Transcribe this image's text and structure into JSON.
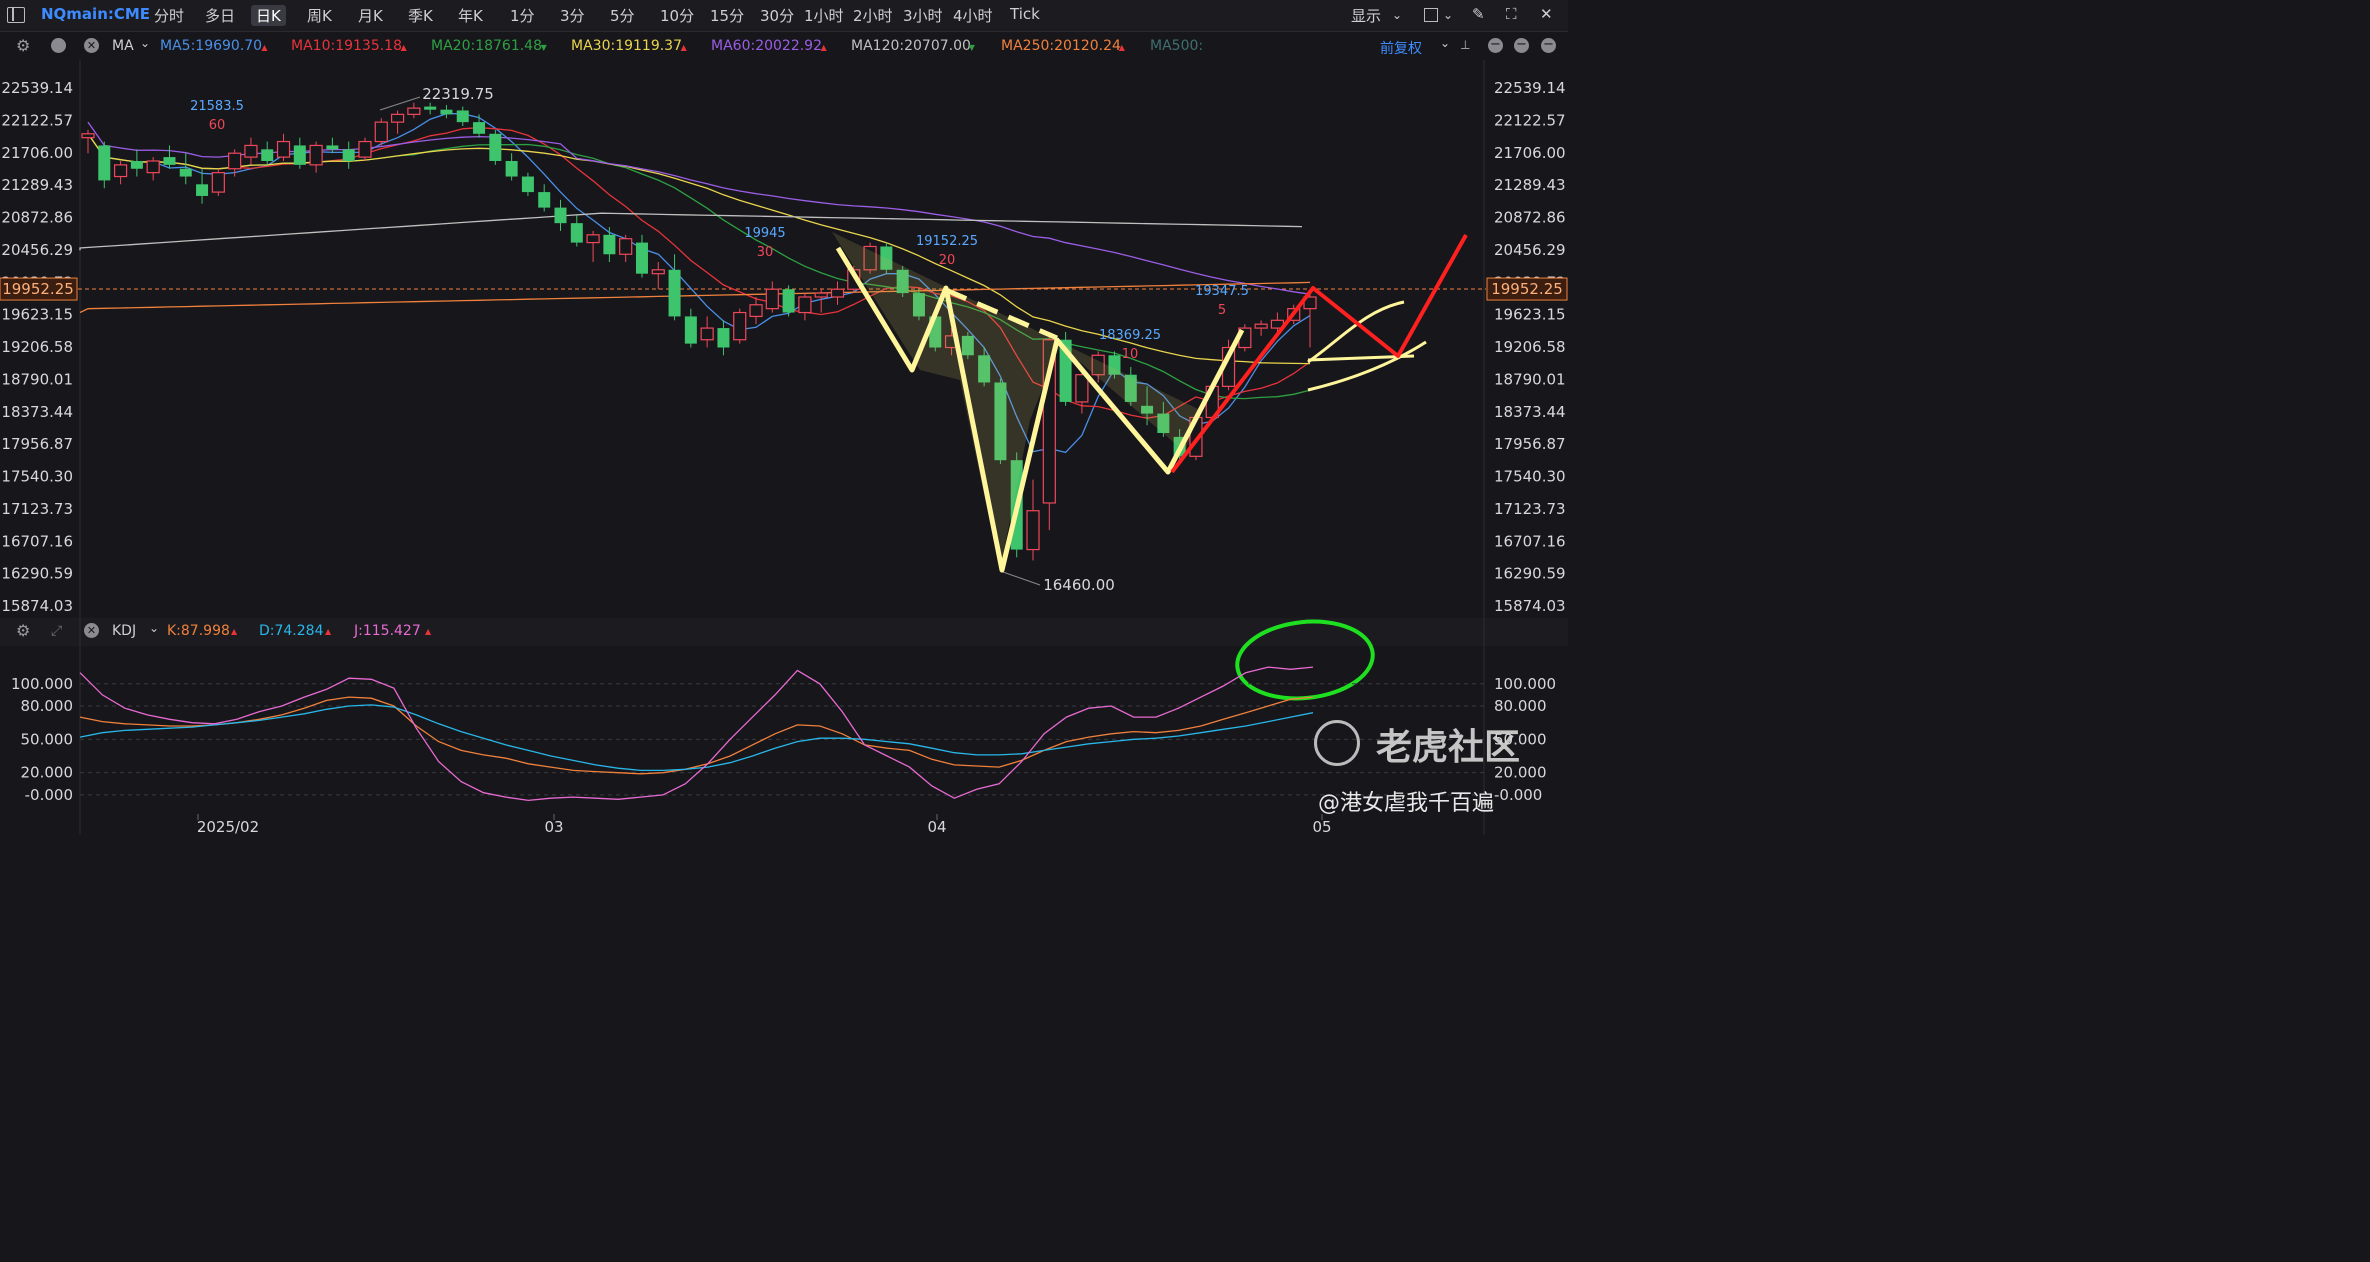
{
  "symbol": "NQmain:CME",
  "periods": [
    "分时",
    "多日",
    "日K",
    "周K",
    "月K",
    "季K",
    "年K",
    "1分",
    "3分",
    "5分",
    "10分",
    "15分",
    "30分",
    "1小时",
    "2小时",
    "3小时",
    "4小时",
    "Tick"
  ],
  "active_period": "日K",
  "display_label": "显示",
  "ma_bar": {
    "type_label": "MA",
    "items": [
      {
        "label": "MA5:19690.70",
        "color": "#4a8fe8"
      },
      {
        "label": "MA10:19135.18",
        "color": "#e8333b"
      },
      {
        "label": "MA20:18761.48",
        "color": "#2ea043"
      },
      {
        "label": "MA30:19119.37",
        "color": "#e9d44d"
      },
      {
        "label": "MA60:20022.92",
        "color": "#9b5de5"
      },
      {
        "label": "MA120:20707.00",
        "color": "#c0c0c0"
      },
      {
        "label": "MA250:20120.24",
        "color": "#f0803c"
      },
      {
        "label": "MA500:",
        "color": "#3f6f6f"
      }
    ],
    "adjust_label": "前复权"
  },
  "kdj_bar": {
    "type_label": "KDJ",
    "k": "K:87.998",
    "d": "D:74.284",
    "j": "J:115.427"
  },
  "current_price": "19952.25",
  "watermark": {
    "logo_text": "老虎社区",
    "author": "@港女虐我千百遍"
  },
  "chart_data": [
    {
      "type": "candlestick",
      "y_ticks": [
        "22539.14",
        "22122.57",
        "21706.00",
        "21289.43",
        "20872.86",
        "20456.29",
        "20039.72",
        "19623.15",
        "19206.58",
        "18790.01",
        "18373.44",
        "17956.87",
        "17540.30",
        "17123.73",
        "16707.16",
        "16290.59",
        "15874.03"
      ],
      "ylim": [
        15874.03,
        22539.14
      ],
      "x_ticks": [
        "2025/02",
        "03",
        "04",
        "05"
      ],
      "annotations": [
        {
          "text": "21583.5",
          "sub": "60"
        },
        {
          "text": "22319.75"
        },
        {
          "text": "19945",
          "sub": "30"
        },
        {
          "text": "19152.25",
          "sub": "20"
        },
        {
          "text": "18369.25",
          "sub": "10"
        },
        {
          "text": "19347.5",
          "sub": "5"
        },
        {
          "text": "16460.00"
        }
      ],
      "candles": [
        [
          21900,
          22000,
          21700,
          21950
        ],
        [
          21800,
          21850,
          21250,
          21350
        ],
        [
          21400,
          21600,
          21300,
          21550
        ],
        [
          21600,
          21750,
          21400,
          21500
        ],
        [
          21450,
          21650,
          21350,
          21600
        ],
        [
          21650,
          21800,
          21500,
          21550
        ],
        [
          21500,
          21700,
          21300,
          21400
        ],
        [
          21300,
          21500,
          21050,
          21150
        ],
        [
          21200,
          21500,
          21150,
          21450
        ],
        [
          21500,
          21750,
          21400,
          21700
        ],
        [
          21650,
          21900,
          21550,
          21800
        ],
        [
          21750,
          21850,
          21550,
          21600
        ],
        [
          21650,
          21950,
          21600,
          21850
        ],
        [
          21800,
          21900,
          21500,
          21550
        ],
        [
          21550,
          21850,
          21450,
          21800
        ],
        [
          21800,
          21900,
          21700,
          21750
        ],
        [
          21750,
          21850,
          21500,
          21600
        ],
        [
          21650,
          21900,
          21600,
          21850
        ],
        [
          21850,
          22150,
          21800,
          22100
        ],
        [
          22100,
          22250,
          21950,
          22200
        ],
        [
          22200,
          22350,
          22150,
          22280
        ],
        [
          22300,
          22350,
          22200,
          22260
        ],
        [
          22260,
          22320,
          22150,
          22200
        ],
        [
          22250,
          22300,
          22050,
          22100
        ],
        [
          22100,
          22200,
          21900,
          21950
        ],
        [
          21950,
          22000,
          21550,
          21600
        ],
        [
          21600,
          21700,
          21350,
          21400
        ],
        [
          21400,
          21450,
          21150,
          21200
        ],
        [
          21200,
          21300,
          20950,
          21000
        ],
        [
          21000,
          21100,
          20700,
          20800
        ],
        [
          20800,
          20900,
          20500,
          20550
        ],
        [
          20550,
          20700,
          20300,
          20650
        ],
        [
          20650,
          20750,
          20300,
          20400
        ],
        [
          20400,
          20650,
          20300,
          20600
        ],
        [
          20550,
          20650,
          20100,
          20150
        ],
        [
          20150,
          20300,
          19950,
          20200
        ],
        [
          20200,
          20400,
          19550,
          19600
        ],
        [
          19600,
          19700,
          19200,
          19250
        ],
        [
          19300,
          19600,
          19200,
          19450
        ],
        [
          19450,
          19550,
          19100,
          19200
        ],
        [
          19300,
          19700,
          19250,
          19650
        ],
        [
          19600,
          19850,
          19500,
          19750
        ],
        [
          19700,
          20050,
          19650,
          19950
        ],
        [
          19950,
          20000,
          19600,
          19650
        ],
        [
          19650,
          19900,
          19550,
          19850
        ],
        [
          19850,
          19950,
          19650,
          19900
        ],
        [
          19850,
          20050,
          19750,
          19950
        ],
        [
          19950,
          20250,
          19900,
          20200
        ],
        [
          20200,
          20550,
          20150,
          20500
        ],
        [
          20500,
          20550,
          20150,
          20200
        ],
        [
          20200,
          20250,
          19850,
          19900
        ],
        [
          19900,
          19950,
          19550,
          19600
        ],
        [
          19600,
          19650,
          19150,
          19200
        ],
        [
          19200,
          19450,
          19100,
          19350
        ],
        [
          19350,
          19400,
          19050,
          19100
        ],
        [
          19100,
          19200,
          18700,
          18750
        ],
        [
          18750,
          18800,
          17700,
          17750
        ],
        [
          17750,
          17850,
          16500,
          16600
        ],
        [
          16600,
          17500,
          16460,
          17100
        ],
        [
          17200,
          19400,
          16850,
          19300
        ],
        [
          19300,
          19400,
          18450,
          18500
        ],
        [
          18500,
          18900,
          18350,
          18850
        ],
        [
          18850,
          19150,
          18750,
          19100
        ],
        [
          19100,
          19150,
          18800,
          18850
        ],
        [
          18850,
          18950,
          18450,
          18500
        ],
        [
          18450,
          18700,
          18200,
          18350
        ],
        [
          18350,
          18500,
          18050,
          18100
        ],
        [
          18050,
          18150,
          17700,
          17800
        ],
        [
          17800,
          18350,
          17750,
          18300
        ],
        [
          18300,
          18750,
          18250,
          18700
        ],
        [
          18700,
          19300,
          18650,
          19200
        ],
        [
          19200,
          19500,
          19150,
          19450
        ],
        [
          19450,
          19550,
          19350,
          19500
        ],
        [
          19450,
          19650,
          19400,
          19550
        ],
        [
          19550,
          19750,
          19500,
          19700
        ],
        [
          19700,
          19900,
          19200,
          19850
        ]
      ],
      "series": [
        {
          "name": "MA5",
          "color": "#4a8fe8"
        },
        {
          "name": "MA10",
          "color": "#e8333b"
        },
        {
          "name": "MA20",
          "color": "#2ea043"
        },
        {
          "name": "MA30",
          "color": "#e9d44d"
        },
        {
          "name": "MA60",
          "color": "#9b5de5"
        },
        {
          "name": "MA120",
          "color": "#c0c0c0"
        },
        {
          "name": "MA250",
          "color": "#f0803c"
        }
      ]
    },
    {
      "type": "line",
      "y_ticks": [
        "100.000",
        "80.000",
        "50.000",
        "20.000",
        "-0.000"
      ],
      "ylim": [
        -10,
        125
      ],
      "series": [
        {
          "name": "K",
          "color": "#f0803c",
          "values": [
            70,
            66,
            64,
            63,
            62,
            62,
            63,
            65,
            68,
            72,
            78,
            85,
            88,
            87,
            80,
            62,
            48,
            40,
            36,
            33,
            28,
            25,
            22,
            21,
            20,
            19,
            20,
            23,
            28,
            35,
            45,
            55,
            63,
            62,
            55,
            45,
            42,
            40,
            32,
            27,
            26,
            25,
            31,
            40,
            48,
            52,
            55,
            57,
            56,
            58,
            62,
            68,
            74,
            80,
            86,
            88
          ]
        },
        {
          "name": "D",
          "color": "#29b6e8",
          "values": [
            52,
            56,
            58,
            59,
            60,
            61,
            63,
            65,
            67,
            70,
            73,
            77,
            80,
            81,
            79,
            72,
            64,
            57,
            51,
            45,
            40,
            35,
            31,
            27,
            24,
            22,
            22,
            23,
            25,
            29,
            35,
            42,
            48,
            51,
            51,
            50,
            48,
            46,
            42,
            38,
            36,
            36,
            37,
            40,
            43,
            46,
            48,
            50,
            51,
            53,
            56,
            59,
            62,
            66,
            70,
            74
          ]
        },
        {
          "name": "J",
          "color": "#e86ad2",
          "values": [
            110,
            90,
            78,
            72,
            68,
            65,
            64,
            68,
            75,
            80,
            88,
            95,
            105,
            104,
            96,
            60,
            30,
            12,
            2,
            -2,
            -5,
            -3,
            -2,
            -3,
            -4,
            -2,
            0,
            10,
            28,
            50,
            70,
            90,
            112,
            100,
            75,
            45,
            35,
            25,
            8,
            -3,
            5,
            10,
            30,
            55,
            70,
            78,
            80,
            70,
            70,
            78,
            88,
            98,
            110,
            115,
            113,
            115
          ]
        }
      ]
    }
  ]
}
